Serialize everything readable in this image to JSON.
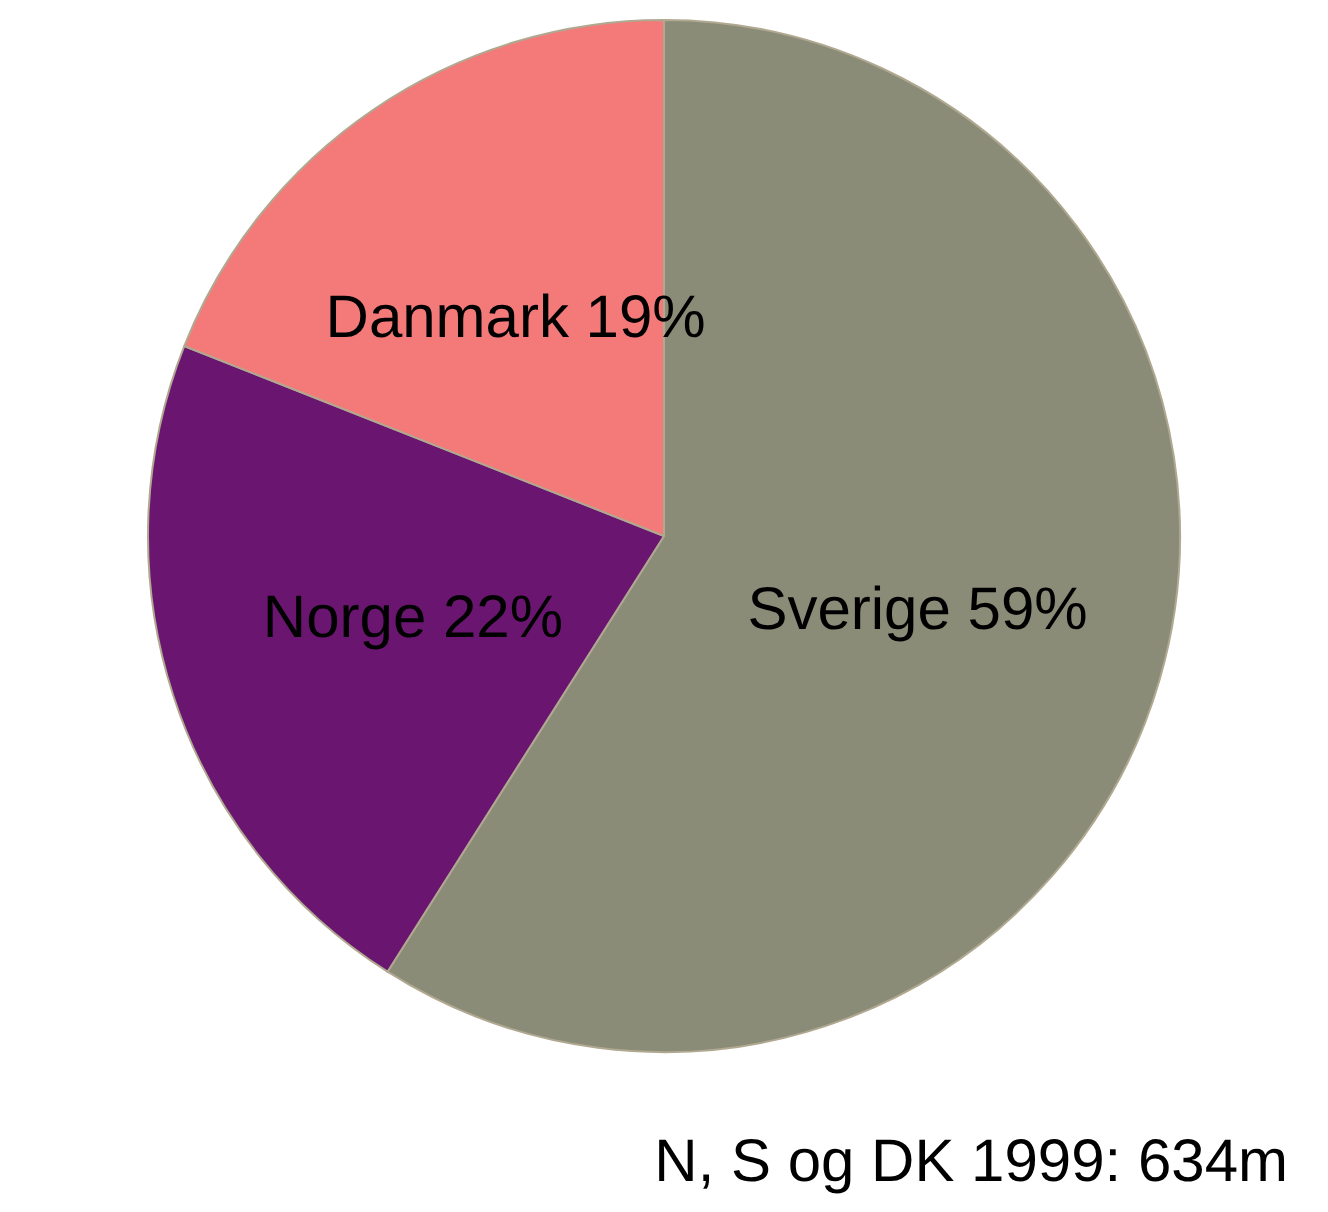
{
  "chart_data": {
    "type": "pie",
    "categories": [
      "Sverige",
      "Norge",
      "Danmark"
    ],
    "values": [
      59,
      22,
      19
    ],
    "value_labels": [
      "59%",
      "22%",
      "19%"
    ],
    "colors": [
      "#8a8c78",
      "#6a1670",
      "#f47a7a"
    ],
    "annotations": [
      "N, S og DK 1999: 634m"
    ],
    "legend": false
  }
}
